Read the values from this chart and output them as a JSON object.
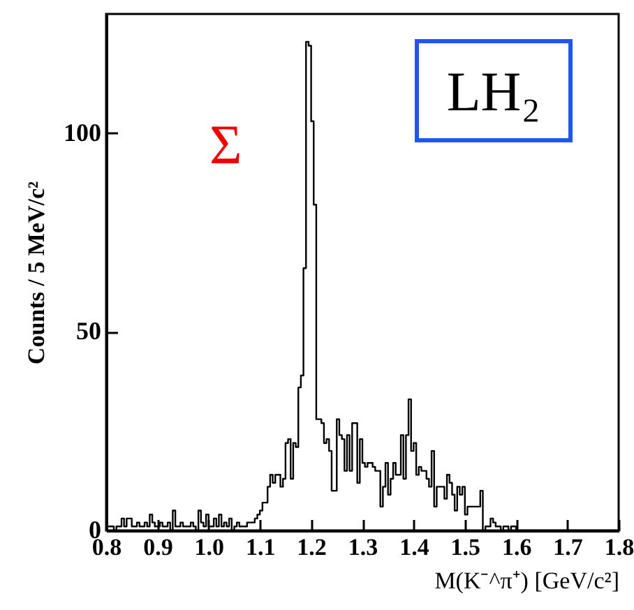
{
  "chart_data": {
    "type": "histogram",
    "xlabel": "M(K⁻^π⁺) [GeV/c²]",
    "ylabel": "Counts / 5 MeV/c²",
    "color": "#000000",
    "annotations": [
      "Σ",
      "LH₂"
    ],
    "bins": [
      0.8,
      0.805,
      0.81,
      0.815,
      0.82,
      0.825,
      0.83,
      0.835,
      0.84,
      0.845,
      0.85,
      0.855,
      0.86,
      0.865,
      0.87,
      0.875,
      0.88,
      0.885,
      0.89,
      0.895,
      0.9,
      0.905,
      0.91,
      0.915,
      0.92,
      0.925,
      0.93,
      0.935,
      0.94,
      0.945,
      0.95,
      0.955,
      0.96,
      0.965,
      0.97,
      0.975,
      0.98,
      0.985,
      0.99,
      0.995,
      1.0,
      1.005,
      1.01,
      1.015,
      1.02,
      1.025,
      1.03,
      1.035,
      1.04,
      1.045,
      1.05,
      1.055,
      1.06,
      1.065,
      1.07,
      1.075,
      1.08,
      1.085,
      1.09,
      1.095,
      1.1,
      1.105,
      1.11,
      1.115,
      1.12,
      1.125,
      1.13,
      1.135,
      1.14,
      1.145,
      1.15,
      1.155,
      1.16,
      1.165,
      1.17,
      1.175,
      1.18,
      1.185,
      1.19,
      1.195,
      1.2,
      1.205,
      1.21,
      1.215,
      1.22,
      1.225,
      1.23,
      1.235,
      1.24,
      1.245,
      1.25,
      1.255,
      1.26,
      1.265,
      1.27,
      1.275,
      1.28,
      1.285,
      1.29,
      1.295,
      1.3,
      1.305,
      1.31,
      1.315,
      1.32,
      1.325,
      1.33,
      1.335,
      1.34,
      1.345,
      1.35,
      1.355,
      1.36,
      1.365,
      1.37,
      1.375,
      1.38,
      1.385,
      1.39,
      1.395,
      1.4,
      1.405,
      1.41,
      1.415,
      1.42,
      1.425,
      1.43,
      1.435,
      1.44,
      1.445,
      1.45,
      1.455,
      1.46,
      1.465,
      1.47,
      1.475,
      1.48,
      1.485,
      1.49,
      1.495,
      1.5,
      1.505,
      1.51,
      1.515,
      1.52,
      1.525,
      1.53,
      1.535,
      1.54,
      1.545,
      1.55,
      1.555,
      1.56,
      1.565,
      1.57,
      1.575,
      1.58,
      1.585,
      1.59,
      1.595,
      1.6,
      1.605,
      1.61,
      1.615,
      1.62,
      1.625,
      1.63,
      1.635,
      1.64,
      1.645,
      1.65,
      1.655,
      1.66,
      1.665,
      1.67,
      1.675,
      1.68,
      1.685,
      1.69,
      1.695,
      1.7,
      1.705,
      1.71,
      1.715,
      1.72,
      1.725,
      1.73,
      1.735,
      1.74,
      1.745,
      1.75,
      1.755,
      1.76,
      1.765,
      1.77,
      1.775,
      1.78,
      1.785,
      1.79,
      1.795,
      1.8
    ],
    "values": [
      1,
      1,
      1,
      0,
      1,
      1,
      3,
      1,
      3,
      3,
      1,
      1,
      2,
      1,
      1,
      2,
      1,
      4,
      2,
      1,
      1,
      2,
      1,
      1,
      2,
      0,
      5,
      1,
      1,
      2,
      1,
      1,
      1,
      2,
      1,
      0,
      5,
      2,
      1,
      4,
      1,
      1,
      3,
      1,
      4,
      1,
      2,
      1,
      3,
      0,
      1,
      2,
      1,
      1,
      1,
      2,
      2,
      2,
      3,
      4,
      5,
      7,
      7,
      11,
      14,
      12,
      14,
      14,
      11,
      13,
      22,
      23,
      13,
      22,
      21,
      36,
      39,
      66,
      123,
      122,
      103,
      82,
      28,
      28,
      27,
      22,
      23,
      20,
      10,
      10,
      28,
      24,
      23,
      15,
      24,
      15,
      27,
      27,
      12,
      23,
      17,
      16,
      17,
      17,
      16,
      15,
      15,
      6,
      11,
      17,
      9,
      13,
      17,
      14,
      14,
      24,
      13,
      24,
      33,
      20,
      22,
      14,
      16,
      15,
      15,
      13,
      11,
      20,
      6,
      11,
      11,
      11,
      8,
      14,
      12,
      9,
      5,
      11,
      9,
      11,
      4,
      6,
      6,
      6,
      6,
      6,
      10,
      0,
      1,
      1,
      3,
      2,
      1,
      1,
      0,
      1,
      1,
      0,
      1,
      1,
      0,
      0,
      0,
      0,
      0,
      0,
      0,
      0,
      0,
      0,
      0,
      0,
      0,
      0,
      0,
      0,
      0,
      0,
      0,
      0,
      0,
      0,
      0,
      0,
      0,
      0,
      0,
      0,
      0,
      0,
      0,
      0,
      0,
      0,
      0,
      0,
      0,
      0,
      0,
      0
    ],
    "xlim": [
      0.8,
      1.8
    ],
    "xticks": [
      0.8,
      0.9,
      {
        "value": 1,
        "label": "1.0"
      },
      1.1,
      1.2,
      1.3,
      1.4,
      1.5,
      1.6,
      1.7,
      1.8
    ],
    "ylim": [
      0,
      130
    ],
    "yticks": [
      0,
      50,
      100
    ]
  }
}
